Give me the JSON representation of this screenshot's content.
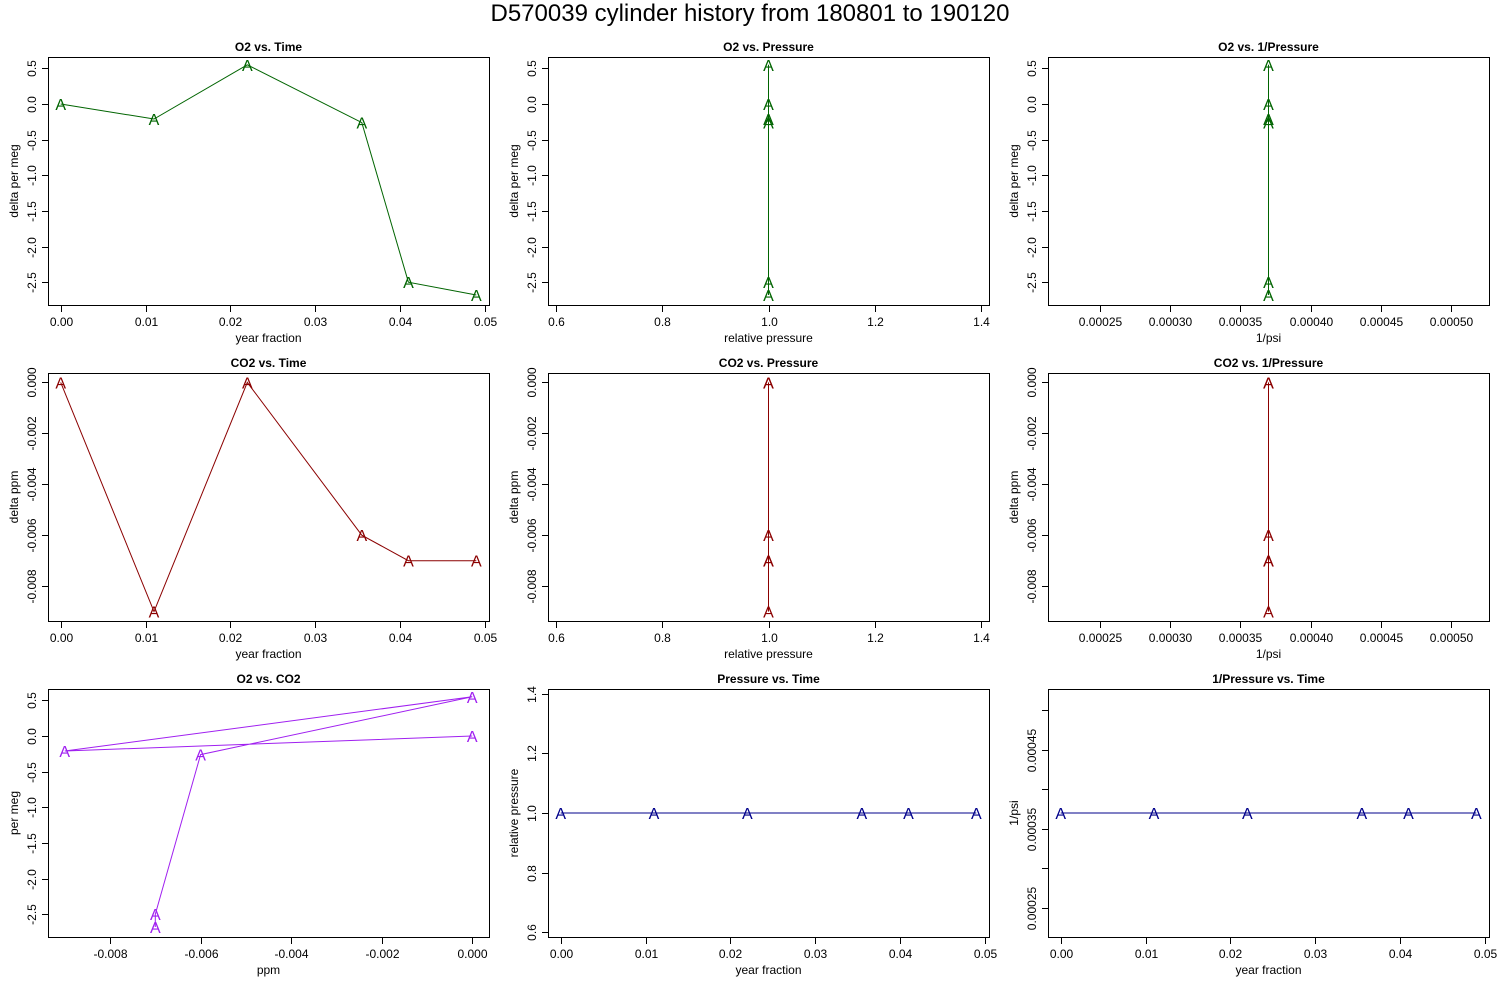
{
  "page": {
    "title": "D570039   cylinder history from  180801  to  190120"
  },
  "chart_data": [
    {
      "type": "line",
      "title": "O2 vs. Time",
      "xlabel": "year fraction",
      "ylabel": "delta per meg",
      "point_symbol": "A",
      "color": "#006400",
      "xlim": [
        -0.0015,
        0.0505
      ],
      "ylim": [
        -2.82,
        0.66
      ],
      "xticks": [
        0.0,
        0.01,
        0.02,
        0.03,
        0.04,
        0.05
      ],
      "xticklabels": [
        "0.00",
        "0.01",
        "0.02",
        "0.03",
        "0.04",
        "0.05"
      ],
      "yticks": [
        0.5,
        0.0,
        -0.5,
        -1.0,
        -1.5,
        -2.0,
        -2.5
      ],
      "yticklabels": [
        "0.5",
        "0.0",
        "-0.5",
        "-1.0",
        "-1.5",
        "-2.0",
        "-2.5"
      ],
      "x": [
        0.0,
        0.011,
        0.022,
        0.0355,
        0.041,
        0.049
      ],
      "y": [
        0.0,
        -0.21,
        0.55,
        -0.26,
        -2.5,
        -2.68
      ]
    },
    {
      "type": "line",
      "title": "O2 vs. Pressure",
      "xlabel": "relative pressure",
      "ylabel": "delta per meg",
      "point_symbol": "A",
      "color": "#006400",
      "xlim": [
        0.584,
        1.416
      ],
      "ylim": [
        -2.82,
        0.66
      ],
      "xticks": [
        0.6,
        0.8,
        1.0,
        1.2,
        1.4
      ],
      "xticklabels": [
        "0.6",
        "0.8",
        "1.0",
        "1.2",
        "1.4"
      ],
      "yticks": [
        0.5,
        0.0,
        -0.5,
        -1.0,
        -1.5,
        -2.0,
        -2.5
      ],
      "yticklabels": [
        "0.5",
        "0.0",
        "-0.5",
        "-1.0",
        "-1.5",
        "-2.0",
        "-2.5"
      ],
      "x": [
        1.0,
        1.0,
        1.0,
        1.0,
        1.0,
        1.0
      ],
      "y": [
        0.0,
        -0.21,
        0.55,
        -0.26,
        -2.5,
        -2.68
      ]
    },
    {
      "type": "line",
      "title": "O2 vs. 1/Pressure",
      "xlabel": "1/psi",
      "ylabel": "delta per meg",
      "point_symbol": "A",
      "color": "#006400",
      "xlim": [
        0.000213,
        0.000527
      ],
      "ylim": [
        -2.82,
        0.66
      ],
      "xticks": [
        0.00025,
        0.0003,
        0.00035,
        0.0004,
        0.00045,
        0.0005
      ],
      "xticklabels": [
        "0.00025",
        "0.00030",
        "0.00035",
        "0.00040",
        "0.00045",
        "0.00050"
      ],
      "yticks": [
        0.5,
        0.0,
        -0.5,
        -1.0,
        -1.5,
        -2.0,
        -2.5
      ],
      "yticklabels": [
        "0.5",
        "0.0",
        "-0.5",
        "-1.0",
        "-1.5",
        "-2.0",
        "-2.5"
      ],
      "x": [
        0.00037,
        0.00037,
        0.00037,
        0.00037,
        0.00037,
        0.00037
      ],
      "y": [
        0.0,
        -0.21,
        0.55,
        -0.26,
        -2.5,
        -2.68
      ]
    },
    {
      "type": "line",
      "title": "CO2 vs. Time",
      "xlabel": "year fraction",
      "ylabel": "delta ppm",
      "point_symbol": "A",
      "color": "#8B0000",
      "xlim": [
        -0.0015,
        0.0505
      ],
      "ylim": [
        -0.00937,
        0.00037
      ],
      "xticks": [
        0.0,
        0.01,
        0.02,
        0.03,
        0.04,
        0.05
      ],
      "xticklabels": [
        "0.00",
        "0.01",
        "0.02",
        "0.03",
        "0.04",
        "0.05"
      ],
      "yticks": [
        0.0,
        -0.002,
        -0.004,
        -0.006,
        -0.008
      ],
      "yticklabels": [
        "0.000",
        "-0.002",
        "-0.004",
        "-0.006",
        "-0.008"
      ],
      "x": [
        0.0,
        0.011,
        0.022,
        0.0355,
        0.041,
        0.049
      ],
      "y": [
        0.0,
        -0.009,
        0.0,
        -0.006,
        -0.007,
        -0.007
      ]
    },
    {
      "type": "line",
      "title": "CO2 vs. Pressure",
      "xlabel": "relative pressure",
      "ylabel": "delta ppm",
      "point_symbol": "A",
      "color": "#8B0000",
      "xlim": [
        0.584,
        1.416
      ],
      "ylim": [
        -0.00937,
        0.00037
      ],
      "xticks": [
        0.6,
        0.8,
        1.0,
        1.2,
        1.4
      ],
      "xticklabels": [
        "0.6",
        "0.8",
        "1.0",
        "1.2",
        "1.4"
      ],
      "yticks": [
        0.0,
        -0.002,
        -0.004,
        -0.006,
        -0.008
      ],
      "yticklabels": [
        "0.000",
        "-0.002",
        "-0.004",
        "-0.006",
        "-0.008"
      ],
      "x": [
        1.0,
        1.0,
        1.0,
        1.0,
        1.0,
        1.0
      ],
      "y": [
        0.0,
        -0.009,
        0.0,
        -0.006,
        -0.007,
        -0.007
      ]
    },
    {
      "type": "line",
      "title": "CO2 vs. 1/Pressure",
      "xlabel": "1/psi",
      "ylabel": "delta ppm",
      "point_symbol": "A",
      "color": "#8B0000",
      "xlim": [
        0.000213,
        0.000527
      ],
      "ylim": [
        -0.00937,
        0.00037
      ],
      "xticks": [
        0.00025,
        0.0003,
        0.00035,
        0.0004,
        0.00045,
        0.0005
      ],
      "xticklabels": [
        "0.00025",
        "0.00030",
        "0.00035",
        "0.00040",
        "0.00045",
        "0.00050"
      ],
      "yticks": [
        0.0,
        -0.002,
        -0.004,
        -0.006,
        -0.008
      ],
      "yticklabels": [
        "0.000",
        "-0.002",
        "-0.004",
        "-0.006",
        "-0.008"
      ],
      "x": [
        0.00037,
        0.00037,
        0.00037,
        0.00037,
        0.00037,
        0.00037
      ],
      "y": [
        0.0,
        -0.009,
        0.0,
        -0.006,
        -0.007,
        -0.007
      ]
    },
    {
      "type": "line",
      "title": "O2 vs. CO2",
      "xlabel": "ppm",
      "ylabel": "per meg",
      "point_symbol": "A",
      "color": "#A020F0",
      "xlim": [
        -0.00937,
        0.00037
      ],
      "ylim": [
        -2.82,
        0.66
      ],
      "xticks": [
        -0.008,
        -0.006,
        -0.004,
        -0.002,
        0.0
      ],
      "xticklabels": [
        "-0.008",
        "-0.006",
        "-0.004",
        "-0.002",
        "0.000"
      ],
      "yticks": [
        0.5,
        0.0,
        -0.5,
        -1.0,
        -1.5,
        -2.0,
        -2.5
      ],
      "yticklabels": [
        "0.5",
        "0.0",
        "-0.5",
        "-1.0",
        "-1.5",
        "-2.0",
        "-2.5"
      ],
      "x": [
        0.0,
        -0.009,
        0.0,
        -0.006,
        -0.007,
        -0.007
      ],
      "y": [
        0.0,
        -0.21,
        0.55,
        -0.26,
        -2.5,
        -2.68
      ]
    },
    {
      "type": "line",
      "title": "Pressure vs. Time",
      "xlabel": "year fraction",
      "ylabel": "relative pressure",
      "point_symbol": "A",
      "color": "#00008B",
      "xlim": [
        -0.0015,
        0.0505
      ],
      "ylim": [
        0.584,
        1.416
      ],
      "xticks": [
        0.0,
        0.01,
        0.02,
        0.03,
        0.04,
        0.05
      ],
      "xticklabels": [
        "0.00",
        "0.01",
        "0.02",
        "0.03",
        "0.04",
        "0.05"
      ],
      "yticks": [
        1.4,
        1.2,
        1.0,
        0.8,
        0.6
      ],
      "yticklabels": [
        "1.4",
        "1.2",
        "1.0",
        "0.8",
        "0.6"
      ],
      "x": [
        0.0,
        0.011,
        0.022,
        0.0355,
        0.041,
        0.049
      ],
      "y": [
        1.0,
        1.0,
        1.0,
        1.0,
        1.0,
        1.0
      ]
    },
    {
      "type": "line",
      "title": "1/Pressure vs. Time",
      "xlabel": "year fraction",
      "ylabel": "1/psi",
      "point_symbol": "A",
      "color": "#00008B",
      "xlim": [
        -0.0015,
        0.0505
      ],
      "ylim": [
        0.000213,
        0.000527
      ],
      "xticks": [
        0.0,
        0.01,
        0.02,
        0.03,
        0.04,
        0.05
      ],
      "xticklabels": [
        "0.00",
        "0.01",
        "0.02",
        "0.03",
        "0.04",
        "0.05"
      ],
      "yticks": [
        0.00045,
        0.00035,
        0.00025
      ],
      "yticklabels": [
        "0.00045",
        "0.00035",
        "0.00025"
      ],
      "yminorticks": [
        0.0005,
        0.0004,
        0.0003
      ],
      "x": [
        0.0,
        0.011,
        0.022,
        0.0355,
        0.041,
        0.049
      ],
      "y": [
        0.00037,
        0.00037,
        0.00037,
        0.00037,
        0.00037,
        0.00037
      ]
    }
  ]
}
